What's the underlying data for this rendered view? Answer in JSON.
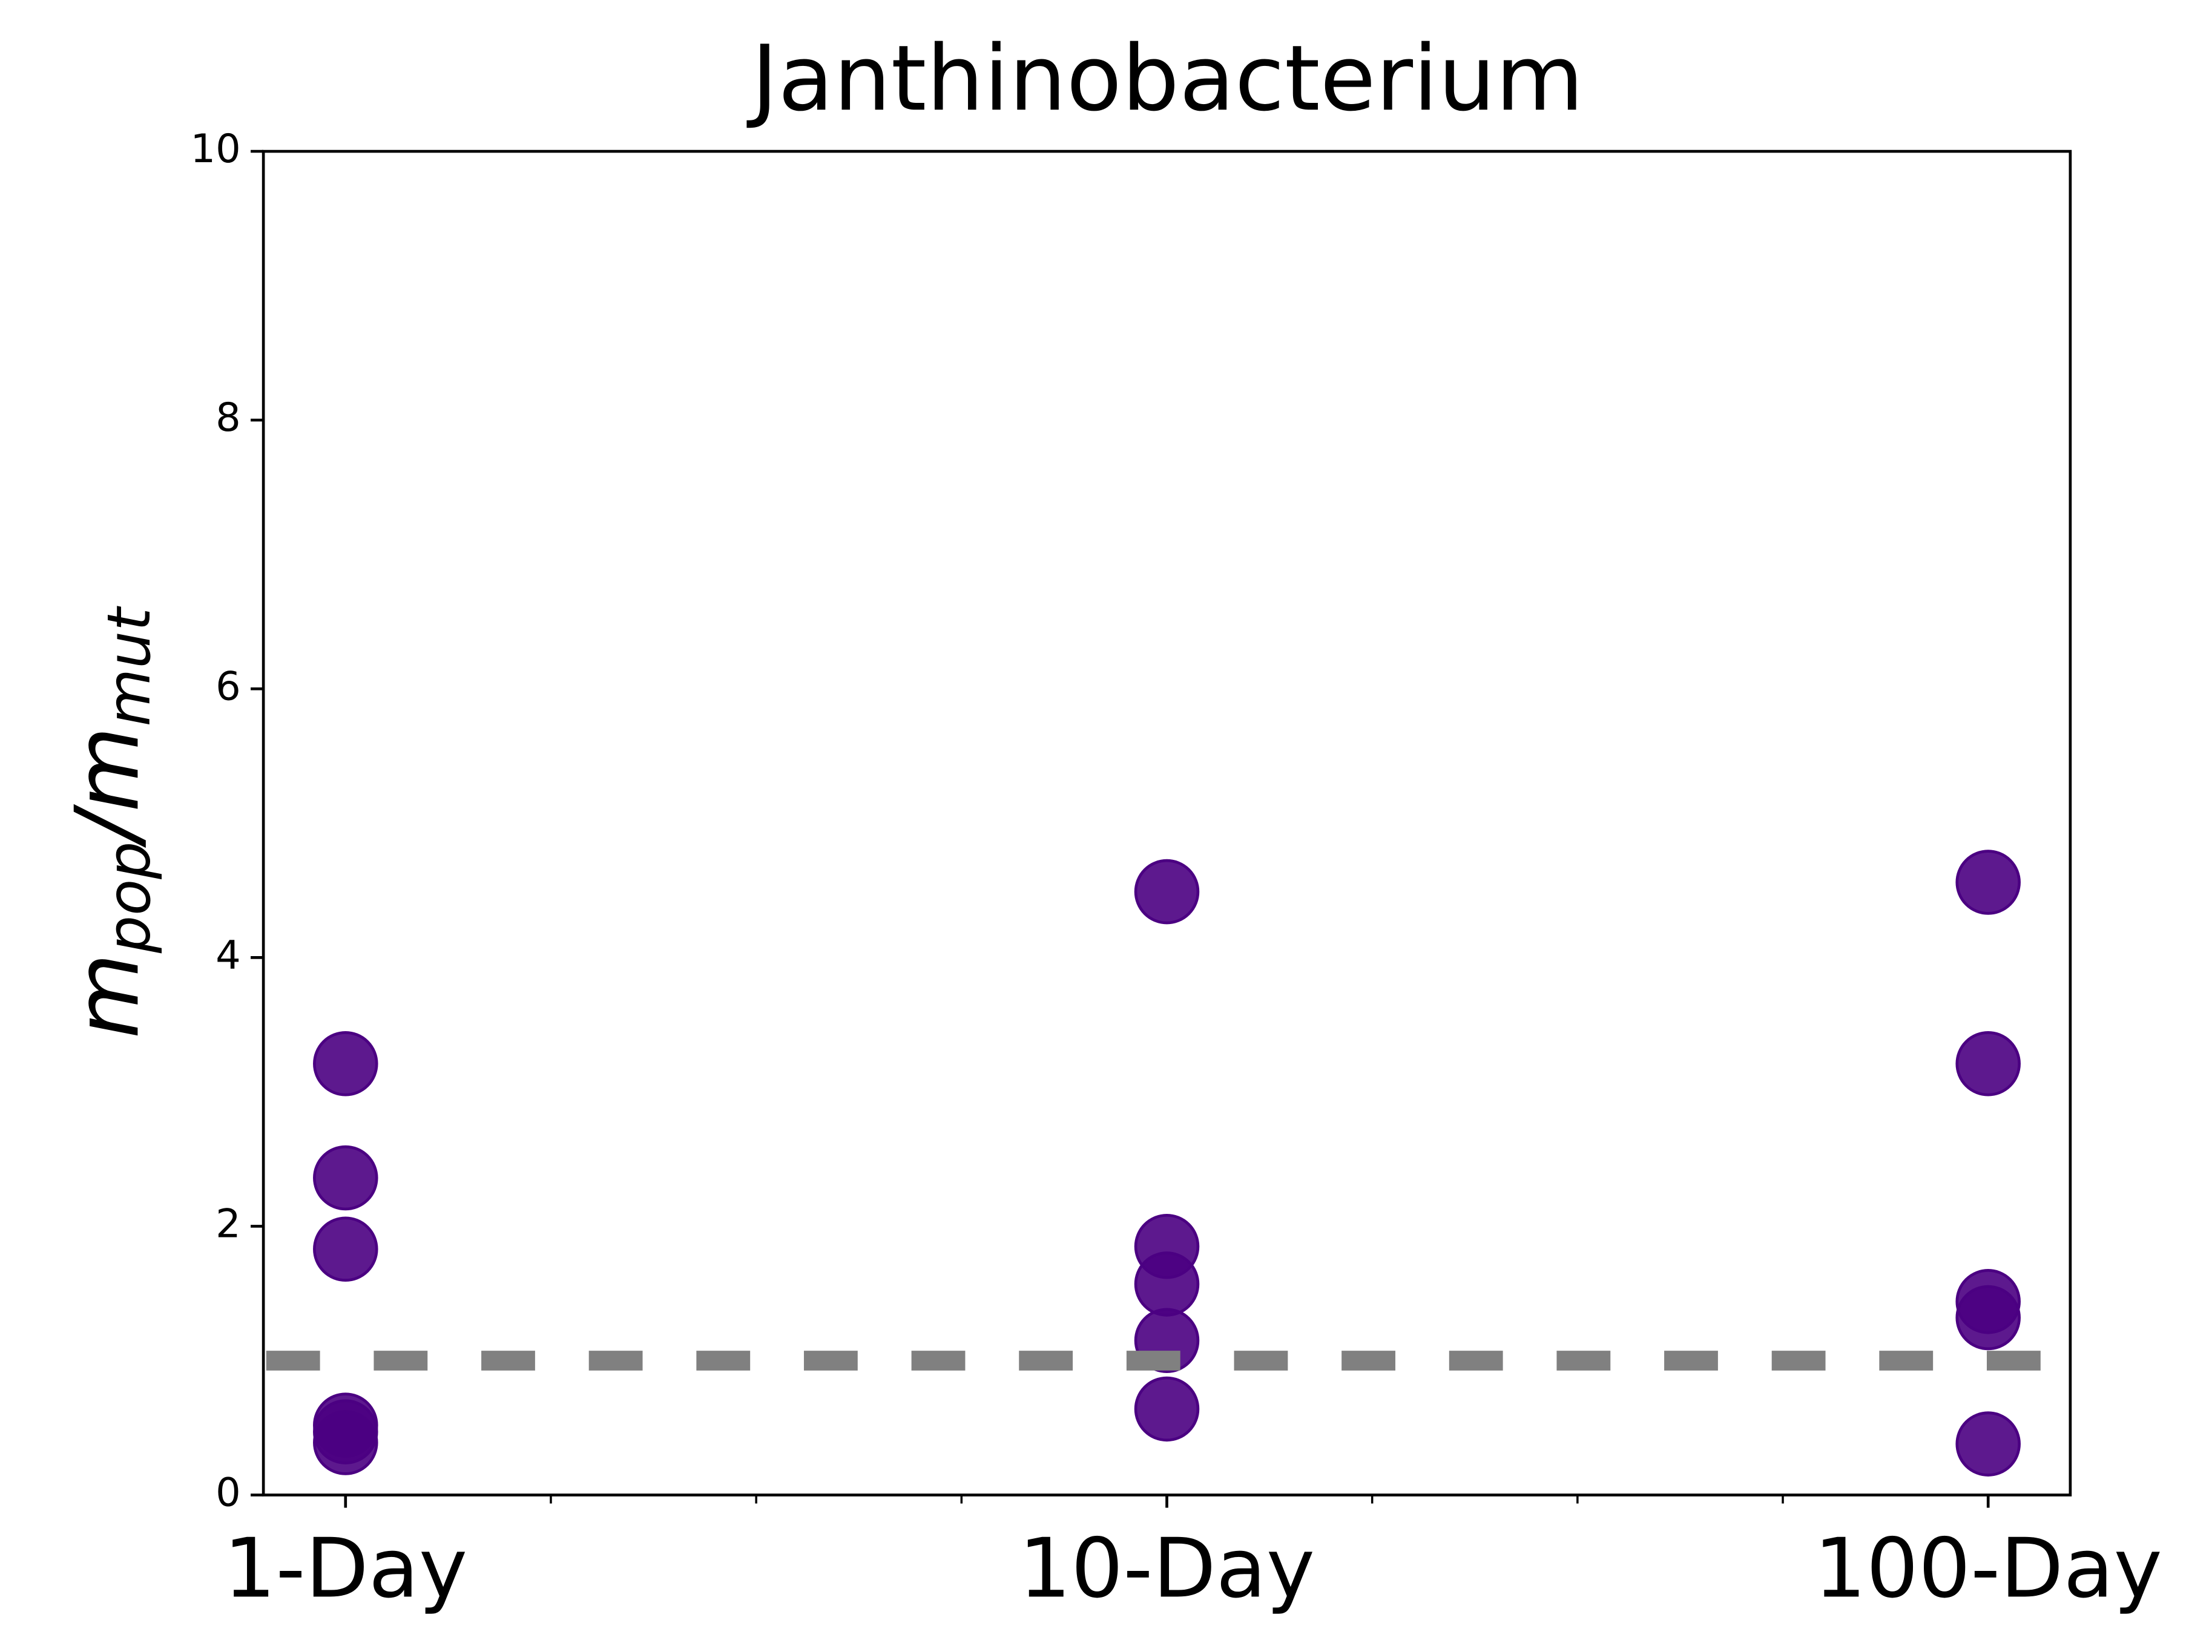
{
  "chart_data": {
    "type": "scatter",
    "title": "Janthinobacterium",
    "ylabel_parts": [
      {
        "text": "m",
        "sub": false
      },
      {
        "text": "pop",
        "sub": true
      },
      {
        "text": "/m",
        "sub": false
      },
      {
        "text": "mut",
        "sub": true
      }
    ],
    "x": [
      1,
      1,
      1,
      1,
      1,
      1,
      2,
      2,
      2,
      2,
      2,
      3,
      3,
      3,
      3,
      3
    ],
    "values": [
      3.21,
      2.36,
      1.83,
      0.52,
      0.47,
      0.39,
      4.49,
      1.85,
      1.57,
      1.15,
      0.64,
      4.56,
      3.21,
      1.44,
      1.32,
      0.38
    ],
    "color": "#4b0082",
    "opacity": 0.9,
    "xlim": [
      0.9,
      3.1
    ],
    "xticks": [
      {
        "value": 1,
        "label": "1-Day"
      },
      {
        "value": 2,
        "label": "10-Day"
      },
      {
        "value": 3,
        "label": "100-Day"
      }
    ],
    "xminorticks": [
      1.25,
      1.5,
      1.75,
      2.25,
      2.5,
      2.75
    ],
    "ylim": [
      0,
      10
    ],
    "yticks": [
      0,
      2,
      4,
      6,
      8,
      10
    ],
    "hline": {
      "value": 1,
      "color": "#808080",
      "dashed": true
    }
  }
}
